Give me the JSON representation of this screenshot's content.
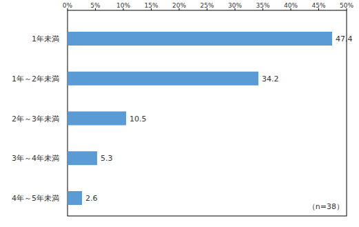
{
  "chart_data": {
    "type": "bar",
    "orientation": "horizontal",
    "categories": [
      "1年未満",
      "1年～2年未満",
      "2年～3年未満",
      "3年～4年未満",
      "4年～5年未満"
    ],
    "values": [
      47.4,
      34.2,
      10.5,
      5.3,
      2.6
    ],
    "color": "#5b9bd5",
    "data_labels": true,
    "grid": false,
    "xlim": [
      0,
      50
    ],
    "xticks": [
      {
        "value": 0,
        "label": "0%"
      },
      {
        "value": 5,
        "label": "5%"
      },
      {
        "value": 10,
        "label": "10%"
      },
      {
        "value": 15,
        "label": "15%"
      },
      {
        "value": 20,
        "label": "20%"
      },
      {
        "value": 25,
        "label": "25%"
      },
      {
        "value": 30,
        "label": "30%"
      },
      {
        "value": 35,
        "label": "35%"
      },
      {
        "value": 40,
        "label": "40%"
      },
      {
        "value": 45,
        "label": "45%"
      },
      {
        "value": 50,
        "label": "50%"
      }
    ],
    "annotations": [
      "（n=38）"
    ]
  }
}
